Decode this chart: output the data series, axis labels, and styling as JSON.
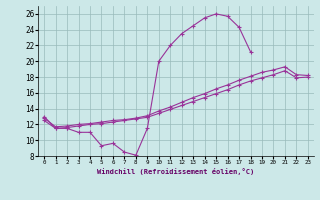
{
  "xlabel": "Windchill (Refroidissement éolien,°C)",
  "x_ticks": [
    0,
    1,
    2,
    3,
    4,
    5,
    6,
    7,
    8,
    9,
    10,
    11,
    12,
    13,
    14,
    15,
    16,
    17,
    18,
    19,
    20,
    21,
    22,
    23
  ],
  "ylim": [
    8,
    27
  ],
  "xlim": [
    -0.5,
    23.5
  ],
  "yticks": [
    8,
    10,
    12,
    14,
    16,
    18,
    20,
    22,
    24,
    26
  ],
  "background_color": "#cce8e8",
  "line_color": "#993399",
  "grid_color": "#99bbbb",
  "lines": [
    {
      "x": [
        0,
        1,
        2,
        3,
        4,
        5,
        6,
        7,
        8,
        9,
        10,
        11,
        12,
        13,
        14,
        15,
        16,
        17,
        18
      ],
      "y": [
        13.0,
        11.5,
        11.5,
        11.0,
        11.0,
        9.3,
        9.6,
        8.5,
        8.1,
        11.5,
        20.0,
        22.0,
        23.5,
        24.5,
        25.5,
        26.0,
        25.7,
        24.3,
        21.2
      ]
    },
    {
      "x": [
        0,
        1,
        2,
        3,
        4,
        5,
        6,
        7,
        8,
        9,
        10,
        11,
        12,
        13,
        14,
        15,
        16,
        17,
        18,
        19,
        20,
        21,
        22,
        23
      ],
      "y": [
        12.5,
        11.5,
        11.6,
        11.8,
        12.0,
        12.1,
        12.3,
        12.5,
        12.7,
        12.9,
        13.4,
        13.9,
        14.4,
        14.9,
        15.4,
        15.9,
        16.4,
        17.0,
        17.5,
        17.9,
        18.3,
        18.8,
        17.9,
        18.0
      ]
    },
    {
      "x": [
        0,
        1,
        2,
        3,
        4,
        5,
        6,
        7,
        8,
        9,
        10,
        11,
        12,
        13,
        14,
        15,
        16,
        17,
        18,
        19,
        20,
        21,
        22,
        23
      ],
      "y": [
        12.8,
        11.7,
        11.8,
        12.0,
        12.1,
        12.3,
        12.5,
        12.6,
        12.8,
        13.1,
        13.7,
        14.2,
        14.8,
        15.4,
        15.9,
        16.5,
        17.0,
        17.6,
        18.1,
        18.6,
        18.9,
        19.3,
        18.3,
        18.2
      ]
    }
  ]
}
